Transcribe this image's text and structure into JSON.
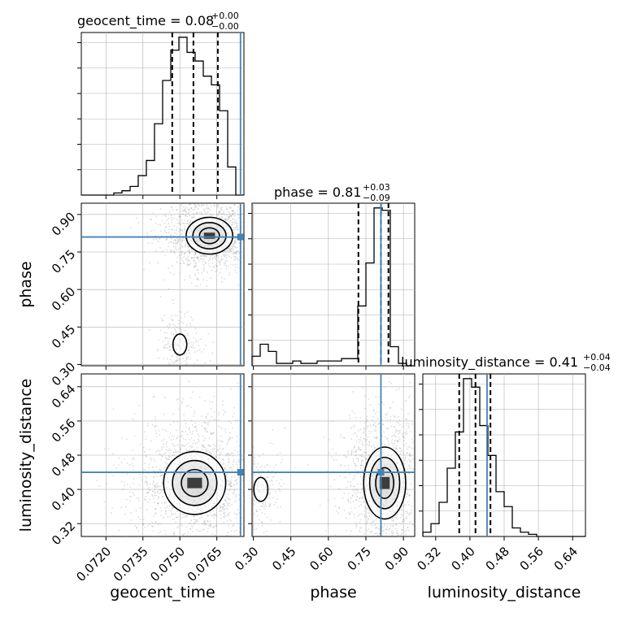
{
  "colors": {
    "truth": "#4682b4",
    "hist": "#000000",
    "grid": "#b0b0b0",
    "scatter": "#9a9a9a"
  },
  "titles": {
    "geocent_time": {
      "label": "geocent_time = 0.08",
      "sup": "+0.00",
      "sub": "−0.00"
    },
    "phase": {
      "label": "phase = 0.81",
      "sup": "+0.03",
      "sub": "−0.09"
    },
    "luminosity_distance": {
      "label": "luminosity_distance = 0.41",
      "sup": "+0.04",
      "sub": "−0.04"
    }
  },
  "axis_labels": {
    "geocent_time": "geocent_time",
    "phase": "phase",
    "luminosity_distance": "luminosity_distance"
  },
  "chart_data": {
    "type": "corner",
    "parameters": [
      "geocent_time",
      "phase",
      "luminosity_distance"
    ],
    "ranges": {
      "geocent_time": [
        0.071,
        0.0776
      ],
      "phase": [
        0.295,
        0.945
      ],
      "luminosity_distance": [
        0.29,
        0.67
      ]
    },
    "ticks": {
      "geocent_time": [
        "0.0720",
        "0.0735",
        "0.0750",
        "0.0765"
      ],
      "phase": [
        "0.30",
        "0.45",
        "0.60",
        "0.75",
        "0.90"
      ],
      "luminosity_distance": [
        "0.32",
        "0.40",
        "0.48",
        "0.56",
        "0.64"
      ]
    },
    "truths": {
      "geocent_time": 0.07746,
      "phase": 0.81,
      "luminosity_distance": 0.44
    },
    "quantiles": {
      "geocent_time": [
        0.07469,
        0.07555,
        0.07654
      ],
      "phase": [
        0.72,
        0.81,
        0.84
      ],
      "luminosity_distance": [
        0.375,
        0.413,
        0.448
      ]
    },
    "histograms": {
      "geocent_time": {
        "bin_edges": [
          0.071,
          0.07133,
          0.07166,
          0.07199,
          0.07232,
          0.07265,
          0.07298,
          0.07331,
          0.07364,
          0.07397,
          0.0743,
          0.07463,
          0.07496,
          0.07529,
          0.07562,
          0.07595,
          0.07628,
          0.07661,
          0.07694,
          0.07727,
          0.0776
        ],
        "counts": [
          0,
          0,
          0,
          0,
          1,
          2,
          4,
          9,
          16,
          33,
          53,
          67,
          73,
          66,
          62,
          55,
          51,
          39,
          13,
          0
        ]
      },
      "phase": {
        "bin_edges": [
          0.295,
          0.3275,
          0.36,
          0.3925,
          0.425,
          0.4575,
          0.49,
          0.5225,
          0.555,
          0.5875,
          0.62,
          0.6525,
          0.685,
          0.7175,
          0.75,
          0.7825,
          0.815,
          0.8475,
          0.88,
          0.9125,
          0.945
        ],
        "counts": [
          4,
          9,
          6,
          1,
          1,
          2,
          1,
          1,
          2,
          2,
          2,
          3,
          3,
          25,
          43,
          66,
          65,
          8,
          1,
          0
        ]
      },
      "luminosity_distance": {
        "bin_edges": [
          0.29,
          0.309,
          0.328,
          0.347,
          0.366,
          0.385,
          0.404,
          0.423,
          0.442,
          0.461,
          0.48,
          0.499,
          0.518,
          0.537,
          0.556,
          0.575,
          0.594,
          0.613,
          0.632,
          0.651,
          0.67
        ],
        "counts": [
          2,
          6,
          16,
          32,
          49,
          74,
          70,
          52,
          38,
          21,
          14,
          4,
          2,
          1,
          0,
          0,
          0,
          0,
          0,
          0
        ]
      }
    },
    "density_modes": {
      "phase_vs_geocent_time": [
        {
          "x": 0.0762,
          "y": 0.815,
          "sx": 0.00045,
          "sy": 0.035,
          "weight": 0.86
        },
        {
          "x": 0.075,
          "y": 0.38,
          "sx": 0.0002,
          "sy": 0.03,
          "weight": 0.14
        }
      ],
      "luminosity_distance_vs_geocent_time": [
        {
          "x": 0.0756,
          "y": 0.415,
          "sx": 0.0006,
          "sy": 0.035,
          "weight": 1.0
        }
      ],
      "luminosity_distance_vs_phase": [
        {
          "x": 0.825,
          "y": 0.415,
          "sx": 0.04,
          "sy": 0.04,
          "weight": 0.85
        },
        {
          "x": 0.33,
          "y": 0.4,
          "sx": 0.02,
          "sy": 0.02,
          "weight": 0.15
        }
      ]
    }
  }
}
